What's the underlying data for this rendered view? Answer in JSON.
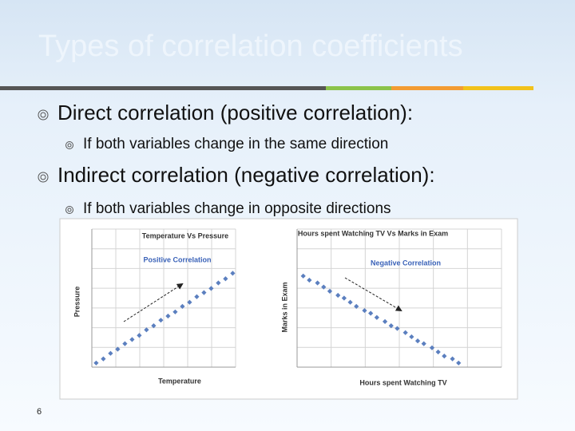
{
  "slide": {
    "title": "Types of correlation coefficients",
    "bullets": [
      {
        "text": "Direct correlation (positive correlation):",
        "sub": "If both variables change in the same direction"
      },
      {
        "text": "Indirect correlation (negative correlation):",
        "sub": "If both variables change in opposite directions"
      }
    ],
    "page_number": "6"
  },
  "chart_data": [
    {
      "type": "scatter",
      "title": "Temperature Vs Pressure",
      "annotation": "Positive Correlation",
      "x_label": "Temperature",
      "y_label": "Pressure",
      "color": "#5b7fbf",
      "grid": true,
      "xlim": [
        0,
        10
      ],
      "ylim": [
        0,
        10
      ],
      "x": [
        0.3,
        0.8,
        1.3,
        1.8,
        2.3,
        2.8,
        3.3,
        3.8,
        4.3,
        4.8,
        5.3,
        5.8,
        6.3,
        6.8,
        7.3,
        7.8,
        8.3,
        8.8,
        9.3,
        9.8
      ],
      "values": [
        0.3,
        0.6,
        1.0,
        1.3,
        1.7,
        2.0,
        2.3,
        2.7,
        3.0,
        3.4,
        3.7,
        4.0,
        4.4,
        4.7,
        5.1,
        5.4,
        5.7,
        6.1,
        6.4,
        6.8
      ]
    },
    {
      "type": "scatter",
      "title": "Hours spent Watching TV Vs Marks in Exam",
      "annotation": "Negative Correlation",
      "x_label": "Hours spent Watching TV",
      "y_label": "Marks in Exam",
      "color": "#5b7fbf",
      "grid": true,
      "xlim": [
        0,
        10
      ],
      "ylim": [
        0,
        10
      ],
      "x": [
        0.3,
        0.6,
        1.0,
        1.3,
        1.6,
        2.0,
        2.3,
        2.6,
        2.9,
        3.3,
        3.6,
        3.9,
        4.3,
        4.6,
        4.9,
        5.3,
        5.6,
        5.9,
        6.2,
        6.6,
        6.9,
        7.2,
        7.6,
        7.9
      ],
      "values": [
        6.6,
        6.3,
        6.1,
        5.8,
        5.5,
        5.2,
        5.0,
        4.7,
        4.4,
        4.1,
        3.9,
        3.6,
        3.3,
        3.0,
        2.8,
        2.5,
        2.2,
        1.9,
        1.7,
        1.4,
        1.1,
        0.8,
        0.6,
        0.3
      ]
    }
  ]
}
